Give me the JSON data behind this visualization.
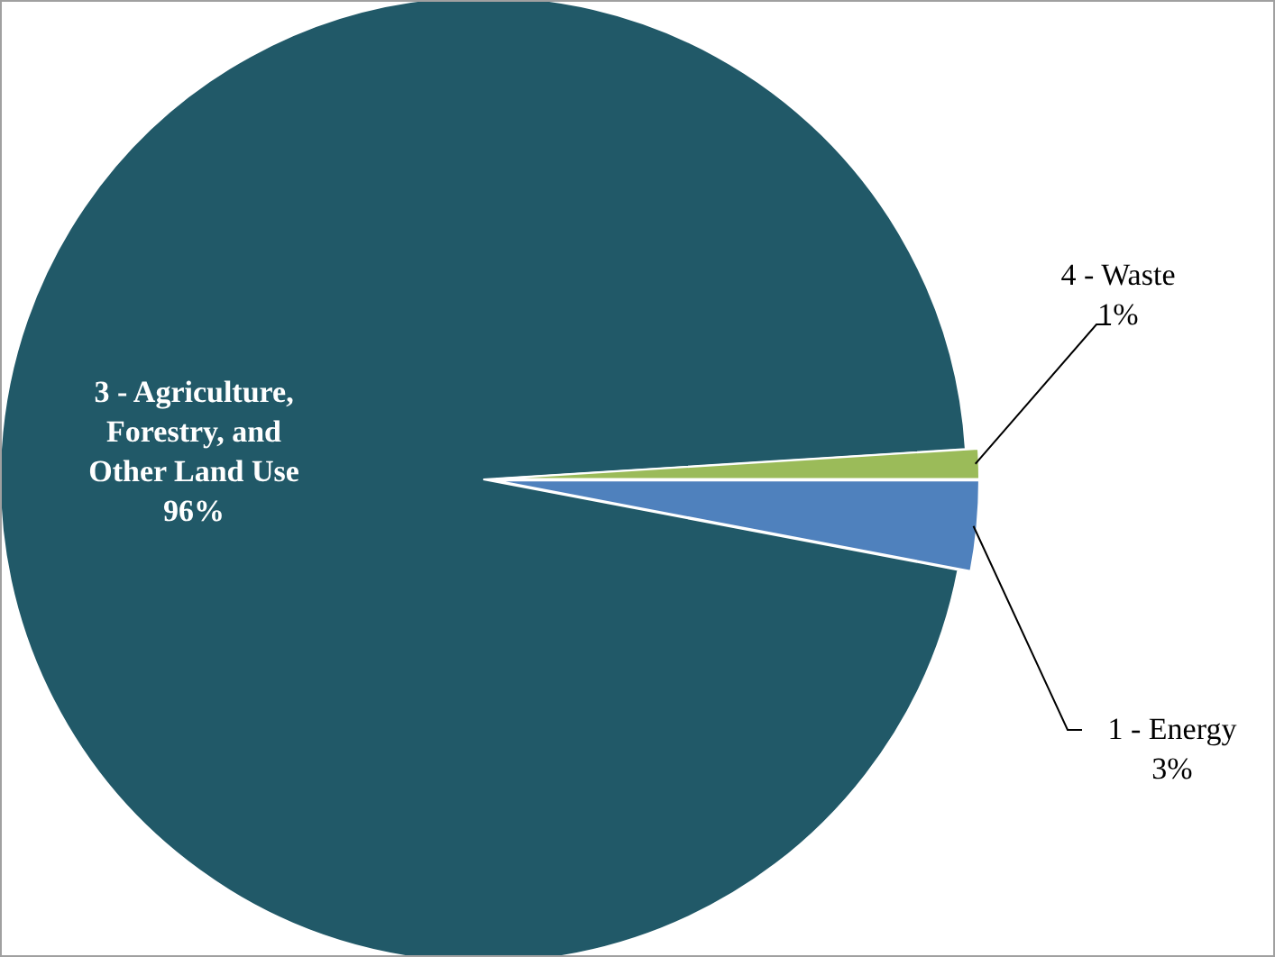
{
  "chart_data": {
    "type": "pie",
    "categories": [
      "3 - Agriculture, Forestry, and Other Land Use",
      "4 - Waste",
      "1 - Energy"
    ],
    "values": [
      96,
      1,
      3
    ],
    "value_labels": [
      "96%",
      "1%",
      "3%"
    ],
    "colors": [
      "#215968",
      "#9bbb59",
      "#4f81bd"
    ]
  }
}
